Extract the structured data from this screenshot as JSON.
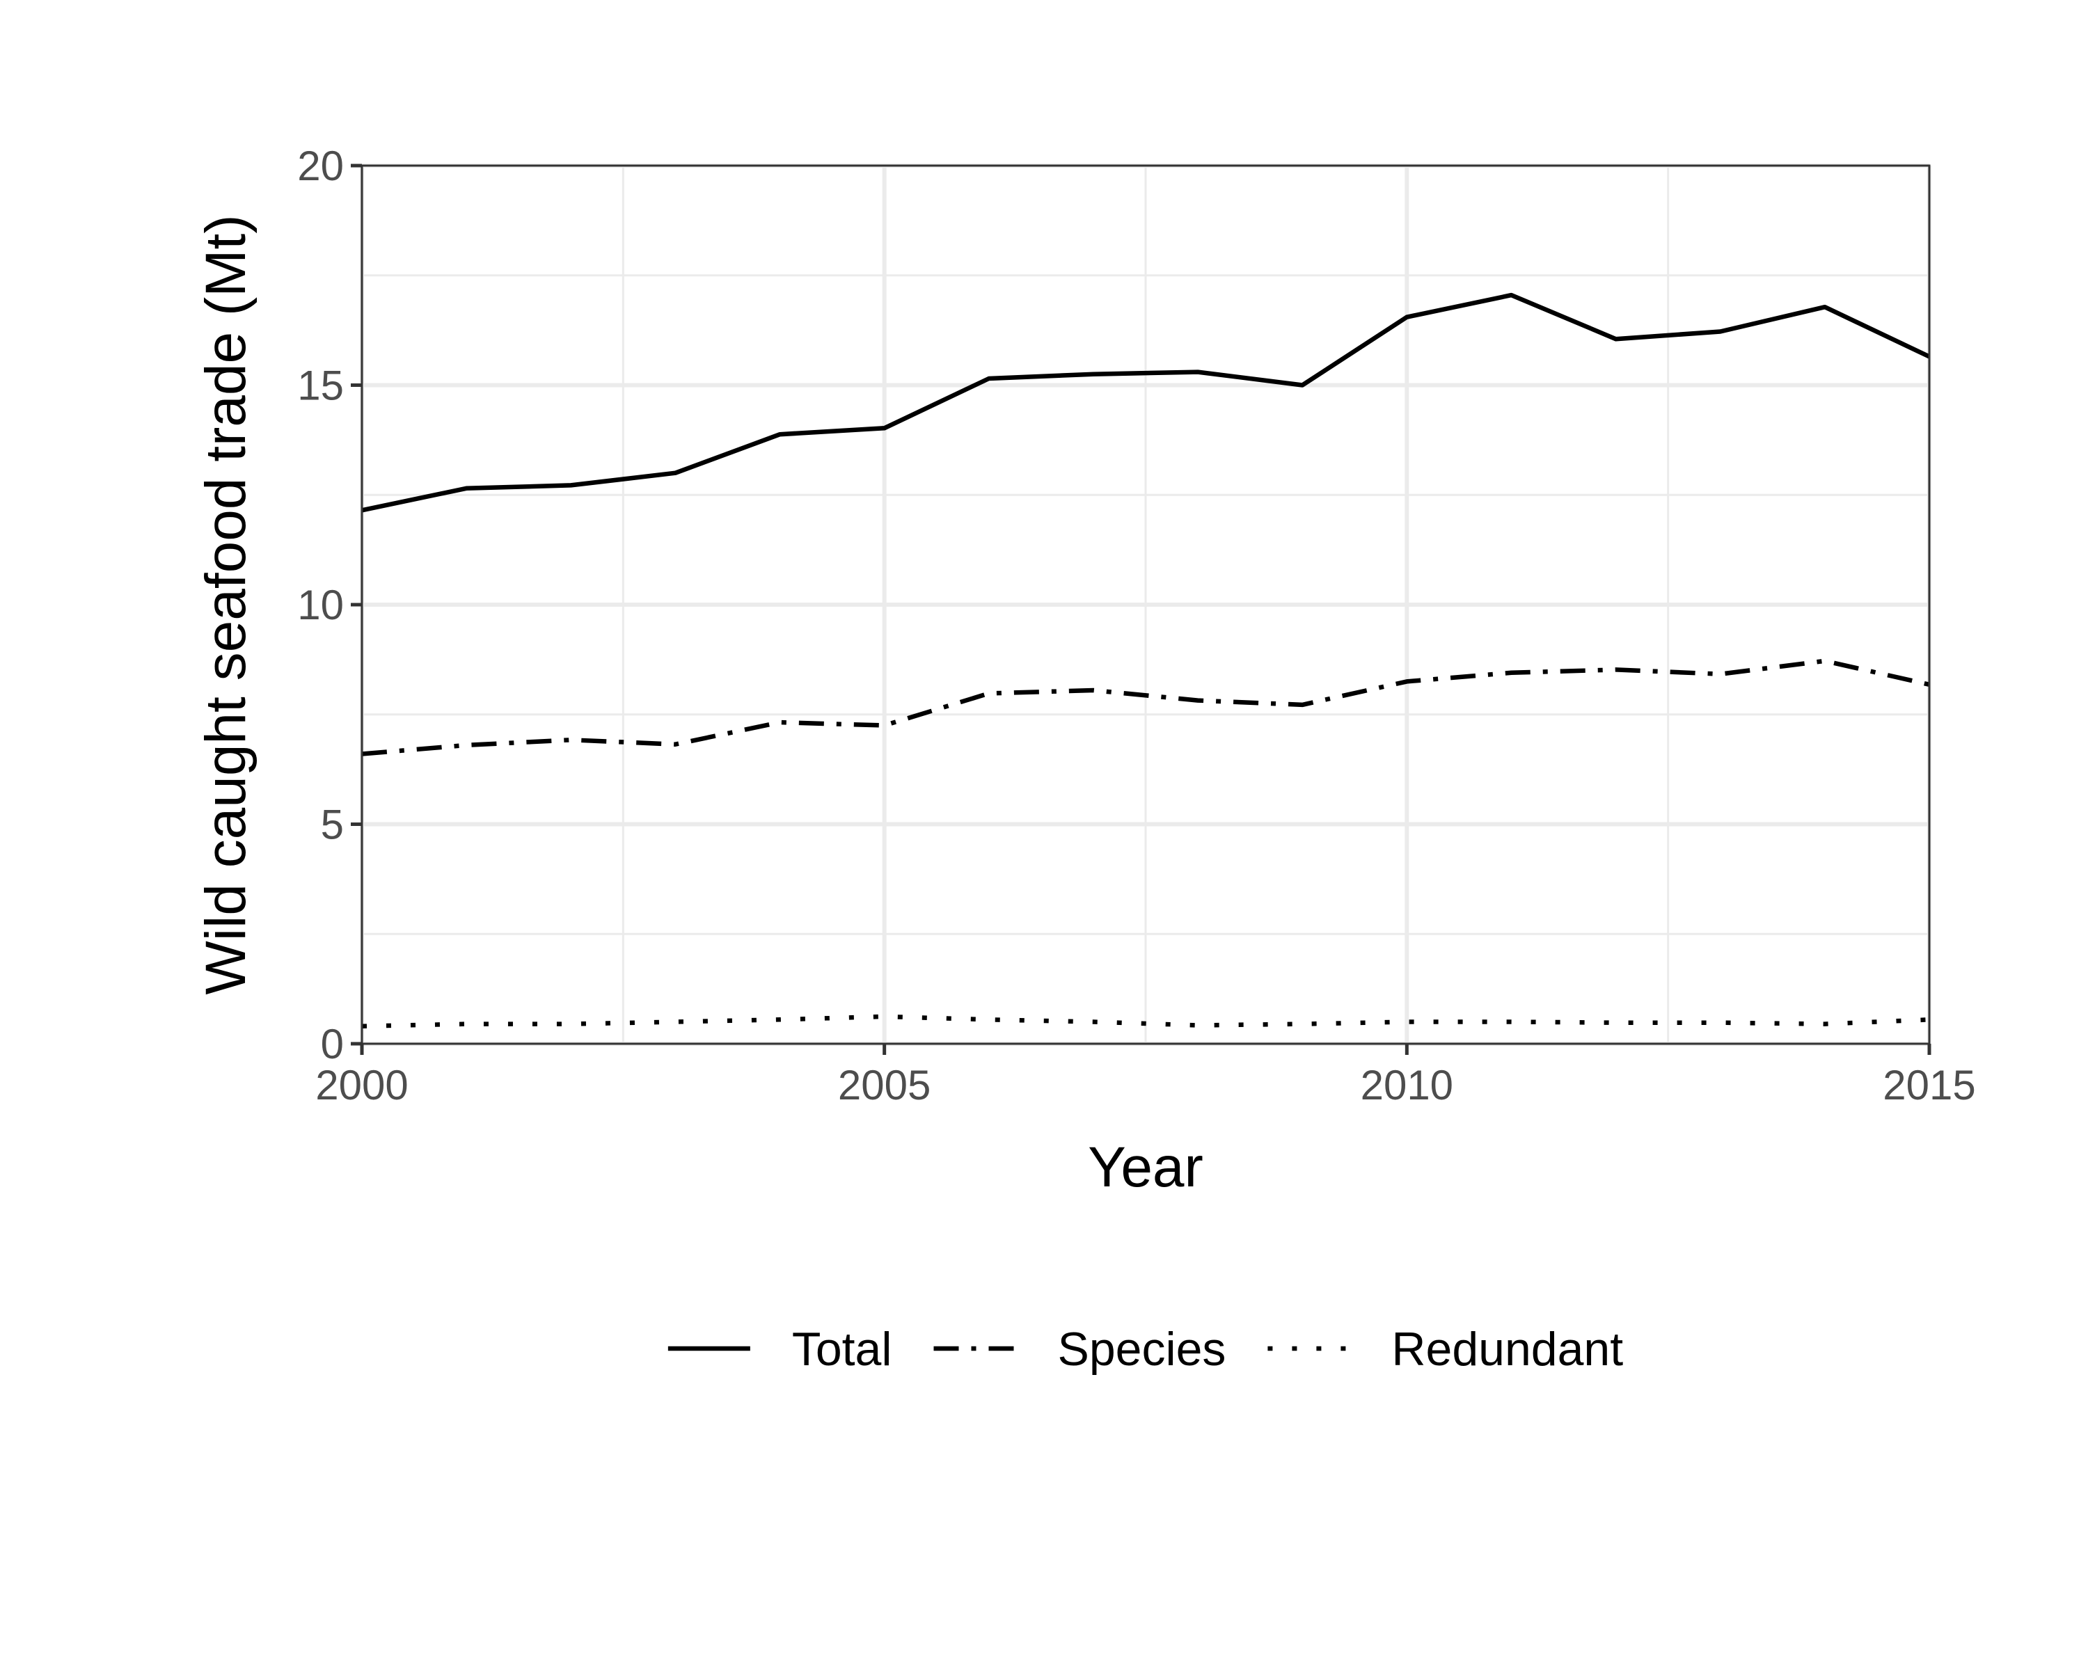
{
  "chart_data": {
    "type": "line",
    "title": "",
    "xlabel": "Year",
    "ylabel": "Wild caught seafood trade (Mt)",
    "x": [
      2000,
      2001,
      2002,
      2003,
      2004,
      2005,
      2006,
      2007,
      2008,
      2009,
      2010,
      2011,
      2012,
      2013,
      2014,
      2015
    ],
    "xlim": [
      2000,
      2015
    ],
    "ylim": [
      0,
      20
    ],
    "x_ticks": [
      2000,
      2005,
      2010,
      2015
    ],
    "y_ticks": [
      0,
      5,
      10,
      15,
      20
    ],
    "x_tick_labels": [
      "2000",
      "2005",
      "2010",
      "2015"
    ],
    "y_tick_labels": [
      "0",
      "5",
      "10",
      "15",
      "20"
    ],
    "grid": true,
    "legend_position": "bottom",
    "series": [
      {
        "name": "Total",
        "linetype": "solid",
        "color": "#000000",
        "values": [
          12.15,
          12.65,
          12.72,
          13.0,
          13.88,
          14.02,
          15.15,
          15.25,
          15.3,
          15.0,
          16.55,
          17.05,
          16.05,
          16.22,
          16.78,
          15.65
        ]
      },
      {
        "name": "Species",
        "linetype": "dashdot",
        "color": "#000000",
        "values": [
          6.6,
          6.8,
          6.92,
          6.82,
          7.32,
          7.25,
          7.98,
          8.05,
          7.82,
          7.72,
          8.25,
          8.45,
          8.52,
          8.42,
          8.72,
          8.18
        ]
      },
      {
        "name": "Redundant",
        "linetype": "dotted",
        "color": "#000000",
        "values": [
          0.4,
          0.45,
          0.45,
          0.5,
          0.55,
          0.62,
          0.55,
          0.5,
          0.42,
          0.45,
          0.5,
          0.5,
          0.48,
          0.48,
          0.45,
          0.55
        ]
      }
    ]
  }
}
